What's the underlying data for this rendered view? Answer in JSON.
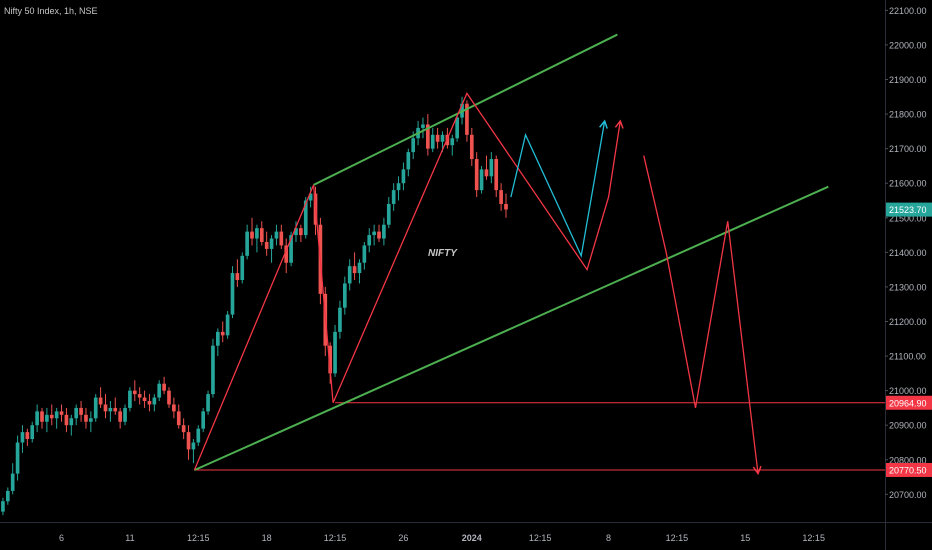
{
  "header": {
    "title": "Nifty 50 Index, 1h, NSE"
  },
  "chart_data": {
    "type": "candlestick",
    "annotation": "NIFTY",
    "colors": {
      "background": "#000000",
      "up": "#26a69a",
      "down": "#ef5350",
      "channel": "#4caf50",
      "path_red": "#f23645",
      "path_cyan": "#22bdd6",
      "level_line": "#f23645",
      "axis_text": "#b2b5be"
    },
    "y_axis": {
      "range": [
        20620,
        22130
      ],
      "ticks": [
        20700,
        20800,
        20900,
        21000,
        21100,
        21200,
        21300,
        21400,
        21500,
        21600,
        21700,
        21800,
        21900,
        22000,
        22100
      ],
      "tick_labels": [
        "20700.00",
        "20800.00",
        "20900.00",
        "21000.00",
        "21100.00",
        "21200.00",
        "21300.00",
        "21400.00",
        "21500.00",
        "21600.00",
        "21700.00",
        "21800.00",
        "21900.00",
        "22000.00",
        "22100.00"
      ]
    },
    "x_axis": {
      "ticks": [
        {
          "pos": 2,
          "label": "6"
        },
        {
          "pos": 9,
          "label": "11"
        },
        {
          "pos": 16,
          "label": "12:15"
        },
        {
          "pos": 23,
          "label": "18"
        },
        {
          "pos": 30,
          "label": "12:15"
        },
        {
          "pos": 37,
          "label": "26"
        },
        {
          "pos": 44,
          "label": "2024"
        },
        {
          "pos": 51,
          "label": "12:15"
        },
        {
          "pos": 58,
          "label": "8"
        },
        {
          "pos": 65,
          "label": "12:15"
        },
        {
          "pos": 72,
          "label": "15"
        },
        {
          "pos": 79,
          "label": "12:15"
        }
      ],
      "x_range": [
        -4.3,
        86.3
      ]
    },
    "price_labels": [
      {
        "value": 21523.7,
        "text": "21523.70",
        "color": "#26a69a"
      },
      {
        "value": 20964.9,
        "text": "20964.90",
        "color": "#f23645"
      },
      {
        "value": 20770.5,
        "text": "20770.50",
        "color": "#f23645"
      }
    ],
    "candles": [
      [
        -4.0,
        20650,
        20690,
        20640,
        20680
      ],
      [
        -3.5,
        20680,
        20720,
        20670,
        20710
      ],
      [
        -3.0,
        20710,
        20790,
        20700,
        20760
      ],
      [
        -2.5,
        20760,
        20870,
        20740,
        20850
      ],
      [
        -2.0,
        20850,
        20900,
        20820,
        20880
      ],
      [
        -1.5,
        20880,
        20890,
        20840,
        20860
      ],
      [
        -1.0,
        20860,
        20910,
        20850,
        20900
      ],
      [
        -0.5,
        20900,
        20960,
        20880,
        20940
      ],
      [
        0.0,
        20940,
        20950,
        20890,
        20910
      ],
      [
        0.5,
        20910,
        20950,
        20880,
        20930
      ],
      [
        1.0,
        20930,
        20960,
        20900,
        20920
      ],
      [
        1.5,
        20920,
        20950,
        20890,
        20940
      ],
      [
        2.0,
        20940,
        20960,
        20910,
        20930
      ],
      [
        2.5,
        20930,
        20950,
        20880,
        20900
      ],
      [
        3.0,
        20900,
        20930,
        20870,
        20920
      ],
      [
        3.5,
        20920,
        20960,
        20900,
        20950
      ],
      [
        4.0,
        20950,
        20970,
        20910,
        20930
      ],
      [
        4.5,
        20930,
        20950,
        20890,
        20910
      ],
      [
        5.0,
        20910,
        20940,
        20880,
        20920
      ],
      [
        5.5,
        20920,
        20990,
        20910,
        20980
      ],
      [
        6.0,
        20980,
        21010,
        20950,
        20960
      ],
      [
        6.5,
        20960,
        20990,
        20920,
        20940
      ],
      [
        7.0,
        20940,
        20970,
        20910,
        20950
      ],
      [
        7.5,
        20950,
        20980,
        20930,
        20940
      ],
      [
        8.0,
        20940,
        20950,
        20890,
        20910
      ],
      [
        8.5,
        20910,
        20960,
        20900,
        20950
      ],
      [
        9.0,
        20950,
        21010,
        20940,
        21000
      ],
      [
        9.5,
        21000,
        21030,
        20970,
        20990
      ],
      [
        10.0,
        20990,
        21010,
        20960,
        20980
      ],
      [
        10.5,
        20980,
        21000,
        20950,
        20970
      ],
      [
        11.0,
        20970,
        20990,
        20940,
        20960
      ],
      [
        11.5,
        20960,
        20990,
        20940,
        20980
      ],
      [
        12.0,
        20980,
        21030,
        20970,
        21020
      ],
      [
        12.5,
        21020,
        21040,
        20990,
        21000
      ],
      [
        13.0,
        21000,
        21010,
        20950,
        20960
      ],
      [
        13.5,
        20960,
        20980,
        20920,
        20940
      ],
      [
        14.0,
        20940,
        20960,
        20890,
        20900
      ],
      [
        14.5,
        20900,
        20920,
        20860,
        20880
      ],
      [
        15.0,
        20880,
        20900,
        20800,
        20830
      ],
      [
        15.5,
        20830,
        20860,
        20790,
        20850
      ],
      [
        16.0,
        20850,
        20900,
        20840,
        20890
      ],
      [
        16.5,
        20890,
        20950,
        20880,
        20940
      ],
      [
        17.0,
        20940,
        21000,
        20930,
        20990
      ],
      [
        17.5,
        20990,
        21150,
        20980,
        21130
      ],
      [
        18.0,
        21130,
        21180,
        21100,
        21170
      ],
      [
        18.5,
        21170,
        21200,
        21140,
        21160
      ],
      [
        19.0,
        21160,
        21230,
        21150,
        21220
      ],
      [
        19.5,
        21220,
        21360,
        21210,
        21340
      ],
      [
        20.0,
        21340,
        21380,
        21300,
        21320
      ],
      [
        20.5,
        21320,
        21400,
        21310,
        21390
      ],
      [
        21.0,
        21390,
        21480,
        21380,
        21460
      ],
      [
        21.5,
        21460,
        21500,
        21420,
        21440
      ],
      [
        22.0,
        21440,
        21480,
        21400,
        21470
      ],
      [
        22.5,
        21470,
        21490,
        21420,
        21430
      ],
      [
        23.0,
        21430,
        21460,
        21390,
        21410
      ],
      [
        23.5,
        21410,
        21450,
        21370,
        21440
      ],
      [
        24.0,
        21440,
        21480,
        21420,
        21460
      ],
      [
        24.5,
        21460,
        21480,
        21410,
        21420
      ],
      [
        25.0,
        21420,
        21440,
        21340,
        21370
      ],
      [
        25.5,
        21370,
        21460,
        21360,
        21450
      ],
      [
        26.0,
        21450,
        21490,
        21430,
        21470
      ],
      [
        26.5,
        21470,
        21480,
        21430,
        21450
      ],
      [
        27.0,
        21450,
        21560,
        21440,
        21550
      ],
      [
        27.5,
        21550,
        21590,
        21530,
        21570
      ],
      [
        28.0,
        21570,
        21590,
        21450,
        21480
      ],
      [
        28.5,
        21480,
        21500,
        21250,
        21280
      ],
      [
        29.0,
        21280,
        21300,
        21100,
        21130
      ],
      [
        29.5,
        21130,
        21140,
        21020,
        21050
      ],
      [
        30.0,
        21050,
        21190,
        21040,
        21170
      ],
      [
        30.5,
        21170,
        21260,
        21150,
        21240
      ],
      [
        31.0,
        21240,
        21330,
        21220,
        21310
      ],
      [
        31.5,
        21310,
        21380,
        21290,
        21360
      ],
      [
        32.0,
        21360,
        21400,
        21320,
        21340
      ],
      [
        32.5,
        21340,
        21380,
        21310,
        21370
      ],
      [
        33.0,
        21370,
        21430,
        21350,
        21420
      ],
      [
        33.5,
        21420,
        21470,
        21400,
        21450
      ],
      [
        34.0,
        21450,
        21480,
        21420,
        21460
      ],
      [
        34.5,
        21460,
        21480,
        21430,
        21440
      ],
      [
        35.0,
        21440,
        21500,
        21420,
        21480
      ],
      [
        35.5,
        21480,
        21560,
        21470,
        21540
      ],
      [
        36.0,
        21540,
        21600,
        21520,
        21580
      ],
      [
        36.5,
        21580,
        21620,
        21550,
        21600
      ],
      [
        37.0,
        21600,
        21660,
        21580,
        21640
      ],
      [
        37.5,
        21640,
        21700,
        21620,
        21690
      ],
      [
        38.0,
        21690,
        21750,
        21670,
        21730
      ],
      [
        38.5,
        21730,
        21780,
        21710,
        21760
      ],
      [
        39.0,
        21760,
        21790,
        21730,
        21770
      ],
      [
        39.5,
        21770,
        21800,
        21680,
        21700
      ],
      [
        40.0,
        21700,
        21760,
        21690,
        21740
      ],
      [
        40.5,
        21740,
        21760,
        21700,
        21720
      ],
      [
        41.0,
        21720,
        21750,
        21690,
        21740
      ],
      [
        41.5,
        21740,
        21760,
        21700,
        21710
      ],
      [
        42.0,
        21710,
        21740,
        21680,
        21730
      ],
      [
        42.5,
        21730,
        21800,
        21720,
        21790
      ],
      [
        43.0,
        21790,
        21850,
        21770,
        21830
      ],
      [
        43.5,
        21830,
        21840,
        21720,
        21740
      ],
      [
        44.0,
        21740,
        21760,
        21650,
        21670
      ],
      [
        44.5,
        21670,
        21690,
        21560,
        21580
      ],
      [
        45.0,
        21580,
        21650,
        21570,
        21640
      ],
      [
        45.5,
        21640,
        21680,
        21610,
        21620
      ],
      [
        46.0,
        21620,
        21690,
        21600,
        21670
      ],
      [
        46.5,
        21670,
        21680,
        21560,
        21580
      ],
      [
        47.0,
        21580,
        21600,
        21520,
        21540
      ],
      [
        47.5,
        21540,
        21570,
        21500,
        21524
      ]
    ],
    "channel_upper": [
      [
        27.8,
        21595
      ],
      [
        58.9,
        22030
      ]
    ],
    "channel_lower": [
      [
        15.6,
        20770
      ],
      [
        80.5,
        21590
      ]
    ],
    "levels": [
      {
        "value": 20964.9,
        "x_start": 30.0
      },
      {
        "value": 20770.5,
        "x_start": 15.6
      }
    ],
    "path_red_main": [
      [
        15.6,
        20770
      ],
      [
        27.8,
        21595
      ],
      [
        29.8,
        20965
      ],
      [
        43.5,
        21860
      ],
      [
        55.8,
        21350
      ],
      [
        58.0,
        21560
      ],
      [
        59.2,
        21780
      ]
    ],
    "path_red_projection": [
      [
        61.6,
        21680
      ],
      [
        63.9,
        21400
      ],
      [
        66.9,
        20950
      ],
      [
        70.2,
        21490
      ],
      [
        73.3,
        20760
      ]
    ],
    "path_cyan": [
      [
        48.0,
        21560
      ],
      [
        49.5,
        21740
      ],
      [
        55.2,
        21390
      ],
      [
        57.6,
        21780
      ]
    ]
  }
}
